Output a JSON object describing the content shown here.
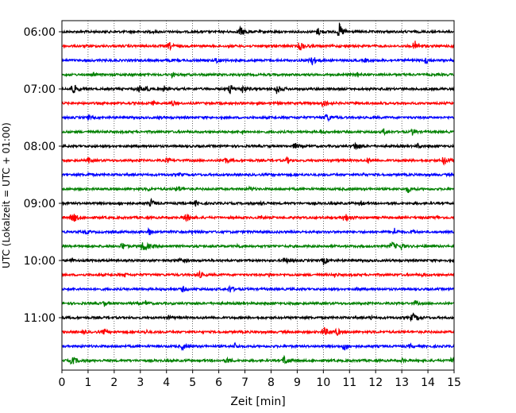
{
  "chart_data": {
    "type": "line",
    "subtype": "helicorder",
    "xlabel": "Zeit  [min]",
    "ylabel": "UTC (Lokalzeit = UTC + 01:00)",
    "xlim": [
      0,
      15
    ],
    "x_ticks": [
      "0",
      "1",
      "2",
      "3",
      "4",
      "5",
      "6",
      "7",
      "8",
      "9",
      "10",
      "11",
      "12",
      "13",
      "14",
      "15"
    ],
    "y_ticks": [
      "06:00",
      "07:00",
      "08:00",
      "09:00",
      "10:00",
      "11:00"
    ],
    "grid": "vertical-dotted",
    "line_start": "06:00",
    "line_duration_min": 15,
    "line_count": 24,
    "colors": [
      "#000000",
      "#ff0000",
      "#0000ff",
      "#008000"
    ],
    "traces": [
      {
        "start": "06:00",
        "color": "#000000",
        "events": [
          [
            3.5,
            2,
            2
          ],
          [
            6.8,
            6,
            12
          ],
          [
            9.8,
            5,
            8
          ],
          [
            10.6,
            10,
            10
          ]
        ]
      },
      {
        "start": "06:15",
        "color": "#ff0000",
        "events": [
          [
            4.1,
            5,
            8
          ],
          [
            9.1,
            6,
            10
          ],
          [
            13.5,
            6,
            10
          ],
          [
            14.9,
            3,
            4
          ]
        ]
      },
      {
        "start": "06:30",
        "color": "#0000ff",
        "events": [
          [
            4.1,
            3,
            4
          ],
          [
            5.9,
            4,
            8
          ],
          [
            9.5,
            7,
            12
          ],
          [
            11.6,
            3,
            5
          ],
          [
            13.9,
            5,
            8
          ]
        ]
      },
      {
        "start": "06:45",
        "color": "#008000",
        "events": [
          [
            1.2,
            3,
            4
          ],
          [
            4.2,
            3,
            6
          ],
          [
            11.3,
            3,
            5
          ]
        ]
      },
      {
        "start": "07:00",
        "color": "#000000",
        "events": [
          [
            0.4,
            7,
            10
          ],
          [
            2.9,
            6,
            8
          ],
          [
            3.2,
            5,
            6
          ],
          [
            3.9,
            4,
            4
          ],
          [
            6.4,
            7,
            10
          ],
          [
            6.9,
            5,
            8
          ],
          [
            8.2,
            6,
            10
          ]
        ]
      },
      {
        "start": "07:15",
        "color": "#ff0000",
        "events": [
          [
            3.5,
            3,
            4
          ],
          [
            4.2,
            4,
            6
          ],
          [
            10.0,
            5,
            10
          ]
        ]
      },
      {
        "start": "07:30",
        "color": "#0000ff",
        "events": [
          [
            1.0,
            3,
            6
          ],
          [
            3.7,
            3,
            4
          ],
          [
            10.1,
            6,
            10
          ]
        ]
      },
      {
        "start": "07:45",
        "color": "#008000",
        "events": [
          [
            6.9,
            3,
            4
          ],
          [
            9.9,
            3,
            4
          ],
          [
            12.3,
            4,
            6
          ],
          [
            13.4,
            4,
            6
          ]
        ]
      },
      {
        "start": "08:00",
        "color": "#000000",
        "events": [
          [
            8.9,
            4,
            8
          ],
          [
            11.2,
            6,
            10
          ],
          [
            13.6,
            3,
            6
          ]
        ]
      },
      {
        "start": "08:15",
        "color": "#ff0000",
        "events": [
          [
            1.0,
            4,
            6
          ],
          [
            4.0,
            4,
            6
          ],
          [
            6.2,
            5,
            8
          ],
          [
            8.6,
            4,
            6
          ],
          [
            11.7,
            4,
            6
          ],
          [
            14.6,
            6,
            10
          ]
        ]
      },
      {
        "start": "08:30",
        "color": "#0000ff",
        "events": [
          [
            1.0,
            3,
            4
          ],
          [
            4.5,
            3,
            4
          ],
          [
            11.5,
            3,
            4
          ]
        ]
      },
      {
        "start": "08:45",
        "color": "#008000",
        "events": [
          [
            3.3,
            3,
            4
          ],
          [
            4.4,
            5,
            8
          ],
          [
            7.2,
            3,
            6
          ],
          [
            13.2,
            5,
            8
          ]
        ]
      },
      {
        "start": "09:00",
        "color": "#000000",
        "events": [
          [
            2.2,
            4,
            6
          ],
          [
            3.4,
            5,
            8
          ],
          [
            5.1,
            4,
            6
          ],
          [
            7.6,
            4,
            6
          ],
          [
            11.4,
            4,
            6
          ]
        ]
      },
      {
        "start": "09:15",
        "color": "#ff0000",
        "events": [
          [
            0.4,
            7,
            10
          ],
          [
            4.7,
            6,
            12
          ],
          [
            7.6,
            3,
            5
          ],
          [
            10.8,
            6,
            12
          ],
          [
            14.3,
            3,
            5
          ]
        ]
      },
      {
        "start": "09:30",
        "color": "#0000ff",
        "events": [
          [
            0.9,
            3,
            6
          ],
          [
            3.3,
            5,
            8
          ],
          [
            5.0,
            4,
            6
          ],
          [
            12.7,
            5,
            8
          ],
          [
            13.4,
            3,
            6
          ]
        ]
      },
      {
        "start": "09:45",
        "color": "#008000",
        "events": [
          [
            2.3,
            5,
            8
          ],
          [
            3.1,
            7,
            12
          ],
          [
            6.7,
            3,
            5
          ],
          [
            12.6,
            6,
            10
          ],
          [
            13.0,
            4,
            6
          ]
        ]
      },
      {
        "start": "10:00",
        "color": "#000000",
        "events": [
          [
            0.3,
            3,
            6
          ],
          [
            4.5,
            4,
            8
          ],
          [
            8.5,
            5,
            8
          ],
          [
            10.0,
            5,
            8
          ]
        ]
      },
      {
        "start": "10:15",
        "color": "#ff0000",
        "events": [
          [
            2.4,
            3,
            4
          ],
          [
            5.2,
            5,
            10
          ],
          [
            7.9,
            3,
            5
          ],
          [
            10.4,
            3,
            6
          ],
          [
            13.8,
            3,
            5
          ]
        ]
      },
      {
        "start": "10:30",
        "color": "#0000ff",
        "events": [
          [
            4.6,
            4,
            8
          ],
          [
            6.4,
            5,
            8
          ],
          [
            11.3,
            3,
            4
          ]
        ]
      },
      {
        "start": "10:45",
        "color": "#008000",
        "events": [
          [
            1.6,
            4,
            6
          ],
          [
            3.2,
            3,
            6
          ],
          [
            13.5,
            3,
            6
          ]
        ]
      },
      {
        "start": "11:00",
        "color": "#000000",
        "events": [
          [
            4.1,
            3,
            6
          ],
          [
            13.4,
            5,
            12
          ],
          [
            11.8,
            3,
            4
          ]
        ]
      },
      {
        "start": "11:15",
        "color": "#ff0000",
        "events": [
          [
            0.8,
            3,
            5
          ],
          [
            1.6,
            4,
            6
          ],
          [
            3.2,
            3,
            5
          ],
          [
            10.0,
            6,
            10
          ],
          [
            10.5,
            5,
            8
          ]
        ]
      },
      {
        "start": "11:30",
        "color": "#0000ff",
        "events": [
          [
            4.6,
            5,
            8
          ],
          [
            6.6,
            4,
            6
          ],
          [
            10.8,
            5,
            10
          ],
          [
            13.3,
            3,
            6
          ]
        ]
      },
      {
        "start": "11:45",
        "color": "#008000",
        "events": [
          [
            0.4,
            5,
            10
          ],
          [
            6.3,
            4,
            8
          ],
          [
            8.5,
            6,
            10
          ],
          [
            13.0,
            3,
            5
          ],
          [
            14.9,
            5,
            8
          ]
        ]
      }
    ]
  }
}
